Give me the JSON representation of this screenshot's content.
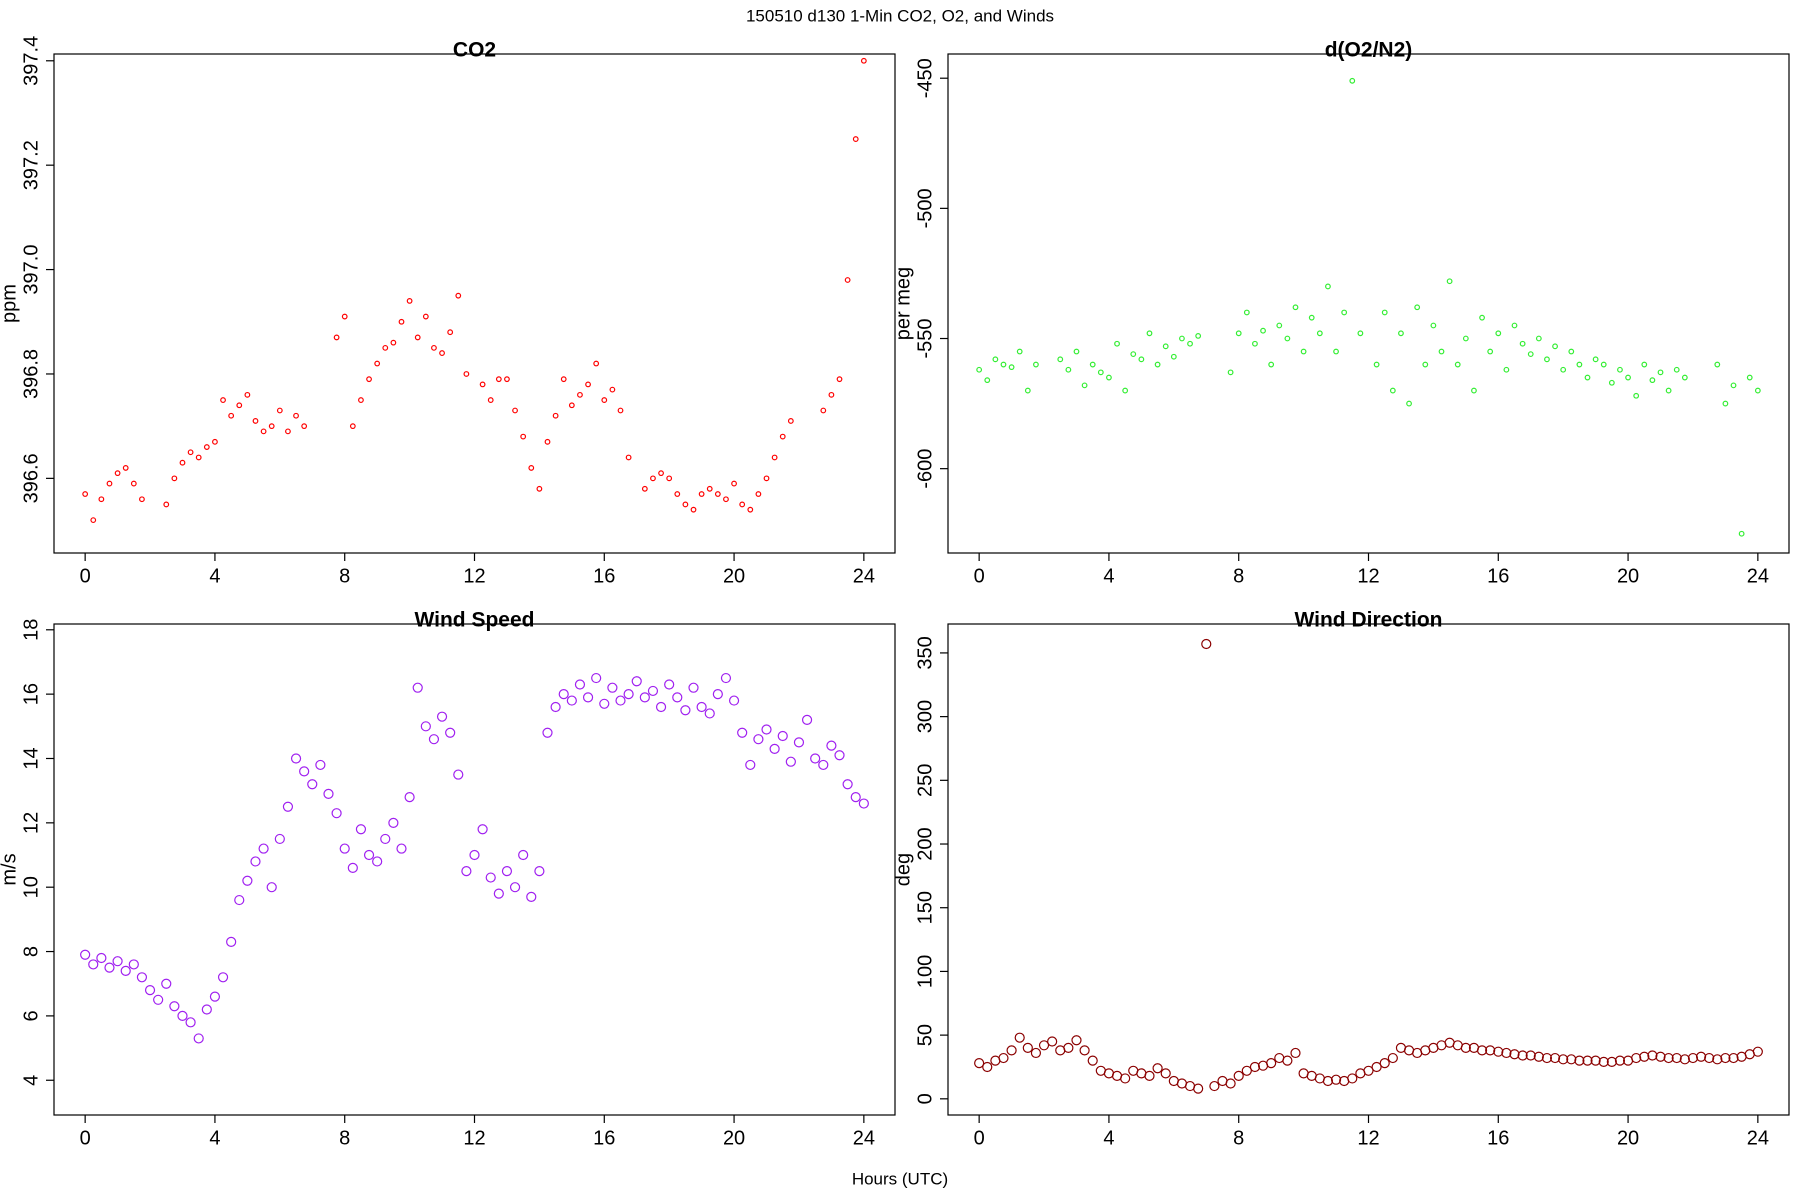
{
  "title": "150510   d130   1-Min CO2, O2, and Winds",
  "xlabel": "Hours (UTC)",
  "chart_data": [
    {
      "type": "scatter",
      "title": "CO2",
      "ylabel": "ppm",
      "color": "#ff0000",
      "marker_size": 2.3,
      "x": [
        0,
        0.25,
        0.5,
        0.75,
        1,
        1.25,
        1.5,
        1.75,
        2,
        2.25,
        2.5,
        2.75,
        3,
        3.25,
        3.5,
        3.75,
        4,
        4.25,
        4.5,
        4.75,
        5,
        5.25,
        5.5,
        5.75,
        6,
        6.25,
        6.5,
        6.75,
        7,
        7.25,
        7.5,
        7.75,
        8,
        8.25,
        8.5,
        8.75,
        9,
        9.25,
        9.5,
        9.75,
        10,
        10.25,
        10.5,
        10.75,
        11,
        11.25,
        11.5,
        11.75,
        12,
        12.25,
        12.5,
        12.75,
        13,
        13.25,
        13.5,
        13.75,
        14,
        14.25,
        14.5,
        14.75,
        15,
        15.25,
        15.5,
        15.75,
        16,
        16.25,
        16.5,
        16.75,
        17,
        17.25,
        17.5,
        17.75,
        18,
        18.25,
        18.5,
        18.75,
        19,
        19.25,
        19.5,
        19.75,
        20,
        20.25,
        20.5,
        20.75,
        21,
        21.25,
        21.5,
        21.75,
        22,
        22.25,
        22.5,
        22.75,
        23,
        23.25,
        23.5,
        23.75,
        24
      ],
      "values": [
        396.57,
        396.52,
        396.56,
        396.59,
        396.61,
        396.62,
        396.59,
        396.56,
        null,
        null,
        396.55,
        396.6,
        396.63,
        396.65,
        396.64,
        396.66,
        396.67,
        396.75,
        396.72,
        396.74,
        396.76,
        396.71,
        396.69,
        396.7,
        396.73,
        396.69,
        396.72,
        396.7,
        null,
        null,
        null,
        396.87,
        396.91,
        396.7,
        396.75,
        396.79,
        396.82,
        396.85,
        396.86,
        396.9,
        396.94,
        396.87,
        396.91,
        396.85,
        396.84,
        396.88,
        396.95,
        396.8,
        null,
        396.78,
        396.75,
        396.79,
        396.79,
        396.73,
        396.68,
        396.62,
        396.58,
        396.67,
        396.72,
        396.79,
        396.74,
        396.76,
        396.78,
        396.82,
        396.75,
        396.77,
        396.73,
        396.64,
        null,
        396.58,
        396.6,
        396.61,
        396.6,
        396.57,
        396.55,
        396.54,
        396.57,
        396.58,
        396.57,
        396.56,
        396.59,
        396.55,
        396.54,
        396.57,
        396.6,
        396.64,
        396.68,
        396.71,
        null,
        null,
        null,
        396.73,
        396.76,
        396.79,
        396.98,
        397.25,
        397.4
      ],
      "xlim": [
        -0.96,
        24.96
      ],
      "xticks": [
        0,
        4,
        8,
        12,
        16,
        20,
        24
      ],
      "ylim": [
        396.457,
        397.413
      ],
      "yticks": [
        396.6,
        396.8,
        {
          "value": 397,
          "label": "397.0"
        },
        397.2,
        397.4
      ]
    },
    {
      "type": "scatter",
      "title": "d(O2/N2)",
      "ylabel": "per meg",
      "color": "#33ee33",
      "marker_size": 2.3,
      "x": [
        0,
        0.25,
        0.5,
        0.75,
        1,
        1.25,
        1.5,
        1.75,
        2,
        2.25,
        2.5,
        2.75,
        3,
        3.25,
        3.5,
        3.75,
        4,
        4.25,
        4.5,
        4.75,
        5,
        5.25,
        5.5,
        5.75,
        6,
        6.25,
        6.5,
        6.75,
        7,
        7.25,
        7.5,
        7.75,
        8,
        8.25,
        8.5,
        8.75,
        9,
        9.25,
        9.5,
        9.75,
        10,
        10.25,
        10.5,
        10.75,
        11,
        11.25,
        11.5,
        11.75,
        12,
        12.25,
        12.5,
        12.75,
        13,
        13.25,
        13.5,
        13.75,
        14,
        14.25,
        14.5,
        14.75,
        15,
        15.25,
        15.5,
        15.75,
        16,
        16.25,
        16.5,
        16.75,
        17,
        17.25,
        17.5,
        17.75,
        18,
        18.25,
        18.5,
        18.75,
        19,
        19.25,
        19.5,
        19.75,
        20,
        20.25,
        20.5,
        20.75,
        21,
        21.25,
        21.5,
        21.75,
        22,
        22.25,
        22.5,
        22.75,
        23,
        23.25,
        23.5,
        23.75,
        24
      ],
      "values": [
        -562,
        -566,
        -558,
        -560,
        -561,
        -555,
        -570,
        -560,
        null,
        null,
        -558,
        -562,
        -555,
        -568,
        -560,
        -563,
        -565,
        -552,
        -570,
        -556,
        -558,
        -548,
        -560,
        -553,
        -557,
        -550,
        -552,
        -549,
        null,
        null,
        null,
        -563,
        -548,
        -540,
        -552,
        -547,
        -560,
        -545,
        -550,
        -538,
        -555,
        -542,
        -548,
        -530,
        -555,
        -540,
        -451,
        -548,
        null,
        -560,
        -540,
        -570,
        -548,
        -575,
        -538,
        -560,
        -545,
        -555,
        -528,
        -560,
        -550,
        -570,
        -542,
        -555,
        -548,
        -562,
        -545,
        -552,
        -556,
        -550,
        -558,
        -553,
        -562,
        -555,
        -560,
        -565,
        -558,
        -560,
        -567,
        -562,
        -565,
        -572,
        -560,
        -566,
        -563,
        -570,
        -562,
        -565,
        null,
        null,
        null,
        -560,
        -575,
        -568,
        -625,
        -565,
        -570
      ],
      "xlim": [
        -0.96,
        24.96
      ],
      "xticks": [
        0,
        4,
        8,
        12,
        16,
        20,
        24
      ],
      "ylim": [
        -632.4,
        -440.7
      ],
      "yticks": [
        -600,
        -550,
        -500,
        -450
      ]
    },
    {
      "type": "scatter",
      "title": "Wind Speed",
      "ylabel": "m/s",
      "color": "#a020f0",
      "marker_size": 4.5,
      "x": [
        0,
        0.25,
        0.5,
        0.75,
        1,
        1.25,
        1.5,
        1.75,
        2,
        2.25,
        2.5,
        2.75,
        3,
        3.25,
        3.5,
        3.75,
        4,
        4.25,
        4.5,
        4.75,
        5,
        5.25,
        5.5,
        5.75,
        6,
        6.25,
        6.5,
        6.75,
        7,
        7.25,
        7.5,
        7.75,
        8,
        8.25,
        8.5,
        8.75,
        9,
        9.25,
        9.5,
        9.75,
        10,
        10.25,
        10.5,
        10.75,
        11,
        11.25,
        11.5,
        11.75,
        12,
        12.25,
        12.5,
        12.75,
        13,
        13.25,
        13.5,
        13.75,
        14,
        14.25,
        14.5,
        14.75,
        15,
        15.25,
        15.5,
        15.75,
        16,
        16.25,
        16.5,
        16.75,
        17,
        17.25,
        17.5,
        17.75,
        18,
        18.25,
        18.5,
        18.75,
        19,
        19.25,
        19.5,
        19.75,
        20,
        20.25,
        20.5,
        20.75,
        21,
        21.25,
        21.5,
        21.75,
        22,
        22.25,
        22.5,
        22.75,
        23,
        23.25,
        23.5,
        23.75,
        24
      ],
      "values": [
        7.9,
        7.6,
        7.8,
        7.5,
        7.7,
        7.4,
        7.6,
        7.2,
        6.8,
        6.5,
        7.0,
        6.3,
        6.0,
        5.8,
        5.3,
        6.2,
        6.6,
        7.2,
        8.3,
        9.6,
        10.2,
        10.8,
        11.2,
        10.0,
        11.5,
        12.5,
        14.0,
        13.6,
        13.2,
        13.8,
        12.9,
        12.3,
        11.2,
        10.6,
        11.8,
        11.0,
        10.8,
        11.5,
        12.0,
        11.2,
        12.8,
        16.2,
        15.0,
        14.6,
        15.3,
        14.8,
        13.5,
        10.5,
        11.0,
        11.8,
        10.3,
        9.8,
        10.5,
        10.0,
        11.0,
        9.7,
        10.5,
        14.8,
        15.6,
        16.0,
        15.8,
        16.3,
        15.9,
        16.5,
        15.7,
        16.2,
        15.8,
        16.0,
        16.4,
        15.9,
        16.1,
        15.6,
        16.3,
        15.9,
        15.5,
        16.2,
        15.6,
        15.4,
        16.0,
        16.5,
        15.8,
        14.8,
        13.8,
        14.6,
        14.9,
        14.3,
        14.7,
        13.9,
        14.5,
        15.2,
        14.0,
        13.8,
        14.4,
        14.1,
        13.2,
        12.8,
        12.6
      ],
      "xlim": [
        -0.96,
        24.96
      ],
      "xticks": [
        0,
        4,
        8,
        12,
        16,
        20,
        24
      ],
      "ylim": [
        2.92,
        18.18
      ],
      "yticks": [
        4,
        6,
        8,
        10,
        12,
        14,
        16,
        18
      ]
    },
    {
      "type": "scatter",
      "title": "Wind Direction",
      "ylabel": "deg",
      "color": "#8b0000",
      "marker_size": 4.5,
      "x": [
        0,
        0.25,
        0.5,
        0.75,
        1,
        1.25,
        1.5,
        1.75,
        2,
        2.25,
        2.5,
        2.75,
        3,
        3.25,
        3.5,
        3.75,
        4,
        4.25,
        4.5,
        4.75,
        5,
        5.25,
        5.5,
        5.75,
        6,
        6.25,
        6.5,
        6.75,
        7,
        7.25,
        7.5,
        7.75,
        8,
        8.25,
        8.5,
        8.75,
        9,
        9.25,
        9.5,
        9.75,
        10,
        10.25,
        10.5,
        10.75,
        11,
        11.25,
        11.5,
        11.75,
        12,
        12.25,
        12.5,
        12.75,
        13,
        13.25,
        13.5,
        13.75,
        14,
        14.25,
        14.5,
        14.75,
        15,
        15.25,
        15.5,
        15.75,
        16,
        16.25,
        16.5,
        16.75,
        17,
        17.25,
        17.5,
        17.75,
        18,
        18.25,
        18.5,
        18.75,
        19,
        19.25,
        19.5,
        19.75,
        20,
        20.25,
        20.5,
        20.75,
        21,
        21.25,
        21.5,
        21.75,
        22,
        22.25,
        22.5,
        22.75,
        23,
        23.25,
        23.5,
        23.75,
        24
      ],
      "values": [
        28,
        25,
        30,
        32,
        38,
        48,
        40,
        36,
        42,
        45,
        38,
        40,
        46,
        38,
        30,
        22,
        20,
        18,
        16,
        22,
        20,
        18,
        24,
        20,
        14,
        12,
        10,
        8,
        357,
        10,
        14,
        12,
        18,
        22,
        25,
        26,
        28,
        32,
        30,
        36,
        20,
        18,
        16,
        14,
        15,
        14,
        16,
        20,
        22,
        25,
        28,
        32,
        40,
        38,
        36,
        38,
        40,
        42,
        44,
        42,
        40,
        40,
        38,
        38,
        37,
        36,
        35,
        34,
        34,
        33,
        32,
        32,
        31,
        31,
        30,
        30,
        30,
        29,
        29,
        30,
        30,
        32,
        33,
        34,
        33,
        32,
        32,
        31,
        32,
        33,
        32,
        31,
        32,
        32,
        33,
        35,
        37
      ],
      "xlim": [
        -0.96,
        24.96
      ],
      "xticks": [
        0,
        4,
        8,
        12,
        16,
        20,
        24
      ],
      "ylim": [
        -12.7,
        372.7
      ],
      "yticks": [
        0,
        50,
        100,
        150,
        200,
        250,
        300,
        350
      ]
    }
  ]
}
